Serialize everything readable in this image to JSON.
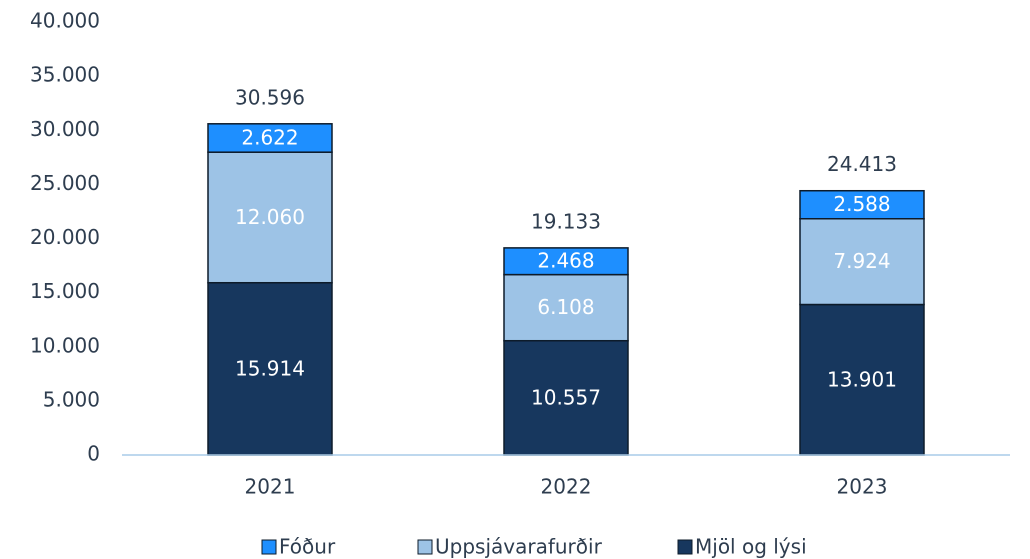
{
  "chart_data": {
    "type": "stacked_bar",
    "categories": [
      "2021",
      "2022",
      "2023"
    ],
    "series": [
      {
        "name": "Mjöl og lýsi",
        "color": "#17375e",
        "values": [
          15914,
          10557,
          13901
        ],
        "value_labels": [
          "15.914",
          "10.557",
          "13.901"
        ]
      },
      {
        "name": "Uppsjávarafurðir",
        "color": "#9dc3e6",
        "values": [
          12060,
          6108,
          7924
        ],
        "value_labels": [
          "12.060",
          "6.108",
          "7.924"
        ]
      },
      {
        "name": "Fóður",
        "color": "#1e8fff",
        "values": [
          2622,
          2468,
          2588
        ],
        "value_labels": [
          "2.622",
          "2.468",
          "2.588"
        ]
      }
    ],
    "totals": {
      "values": [
        30596,
        19133,
        24413
      ],
      "value_labels": [
        "30.596",
        "19.133",
        "24.413"
      ]
    },
    "ylim": [
      0,
      40000
    ],
    "yticks": [
      0,
      {
        "value": 5000,
        "label": "5.000"
      },
      {
        "value": 10000,
        "label": "10.000"
      },
      {
        "value": 15000,
        "label": "15.000"
      },
      {
        "value": 20000,
        "label": "20.000"
      },
      {
        "value": 25000,
        "label": "25.000"
      },
      {
        "value": 30000,
        "label": "30.000"
      },
      {
        "value": 35000,
        "label": "35.000"
      },
      {
        "value": 40000,
        "label": "40.000"
      }
    ],
    "grid": false,
    "legend": "bottom"
  }
}
